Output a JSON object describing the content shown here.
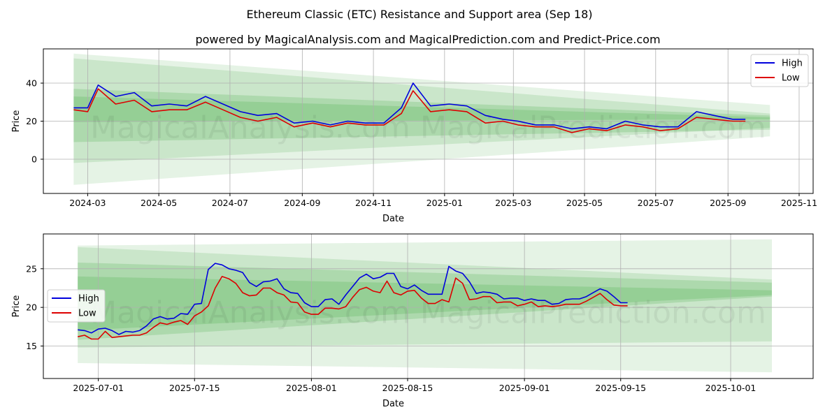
{
  "title": "Ethereum Classic (ETC) Resistance and Support area (Sep 18)",
  "subtitle": "powered by MagicalAnalysis.com and MagicalPrediction.com and Predict-Price.com",
  "watermark": "MagicalAnalysis.com     MagicalPrediction.com",
  "colors": {
    "high": "#0000dd",
    "low": "#dd0000",
    "band": "#2ca02c",
    "grid": "#b0b0b0"
  },
  "chart_data": [
    {
      "type": "line",
      "panel": "top",
      "xlabel": "Date",
      "ylabel": "Price",
      "x_ticks": [
        "2024-03",
        "2024-05",
        "2024-07",
        "2024-09",
        "2024-11",
        "2025-01",
        "2025-03",
        "2025-05",
        "2025-07",
        "2025-09",
        "2025-11"
      ],
      "y_ticks": [
        0,
        20,
        40
      ],
      "ylim": [
        -18,
        58
      ],
      "grid": true,
      "legend": "top-right",
      "series": [
        {
          "name": "High",
          "x": [
            "2024-02-18",
            "2024-03-01",
            "2024-03-10",
            "2024-03-25",
            "2024-04-10",
            "2024-04-25",
            "2024-05-10",
            "2024-05-25",
            "2024-06-10",
            "2024-06-25",
            "2024-07-10",
            "2024-07-25",
            "2024-08-10",
            "2024-08-25",
            "2024-09-10",
            "2024-09-25",
            "2024-10-10",
            "2024-10-25",
            "2024-11-10",
            "2024-11-25",
            "2024-12-05",
            "2024-12-20",
            "2025-01-05",
            "2025-01-20",
            "2025-02-05",
            "2025-02-20",
            "2025-03-05",
            "2025-03-20",
            "2025-04-05",
            "2025-04-20",
            "2025-05-05",
            "2025-05-20",
            "2025-06-05",
            "2025-06-20",
            "2025-07-05",
            "2025-07-20",
            "2025-08-05",
            "2025-08-20",
            "2025-09-05",
            "2025-09-16"
          ],
          "values": [
            27,
            27,
            39,
            33,
            35,
            28,
            29,
            28,
            33,
            29,
            25,
            23,
            24,
            19,
            20,
            18,
            20,
            19,
            19,
            27,
            40,
            28,
            29,
            28,
            23,
            21,
            20,
            18,
            18,
            16,
            17,
            16,
            20,
            18,
            17,
            17,
            25,
            23,
            21,
            21
          ]
        },
        {
          "name": "Low",
          "x": [
            "2024-02-18",
            "2024-03-01",
            "2024-03-10",
            "2024-03-25",
            "2024-04-10",
            "2024-04-25",
            "2024-05-10",
            "2024-05-25",
            "2024-06-10",
            "2024-06-25",
            "2024-07-10",
            "2024-07-25",
            "2024-08-10",
            "2024-08-25",
            "2024-09-10",
            "2024-09-25",
            "2024-10-10",
            "2024-10-25",
            "2024-11-10",
            "2024-11-25",
            "2024-12-05",
            "2024-12-20",
            "2025-01-05",
            "2025-01-20",
            "2025-02-05",
            "2025-02-20",
            "2025-03-05",
            "2025-03-20",
            "2025-04-05",
            "2025-04-20",
            "2025-05-05",
            "2025-05-20",
            "2025-06-05",
            "2025-06-20",
            "2025-07-05",
            "2025-07-20",
            "2025-08-05",
            "2025-08-20",
            "2025-09-05",
            "2025-09-16"
          ],
          "values": [
            26,
            25,
            37,
            29,
            31,
            25,
            26,
            26,
            30,
            26,
            22,
            20,
            22,
            17,
            19,
            17,
            19,
            18,
            18,
            24,
            36,
            25,
            26,
            25,
            19,
            20,
            18,
            17,
            17,
            14,
            16,
            15,
            18,
            17,
            15,
            16,
            22,
            21,
            20,
            20
          ]
        }
      ],
      "bands": [
        {
          "x": [
            "2024-02-18",
            "2025-10-07"
          ],
          "upper": [
            55.5,
            28.5
          ],
          "lower": [
            -13.5,
            12.0
          ],
          "opacity": 0.12
        },
        {
          "x": [
            "2024-02-18",
            "2025-10-07"
          ],
          "upper": [
            53.0,
            24.0
          ],
          "lower": [
            -2.0,
            16.5
          ],
          "opacity": 0.15
        },
        {
          "x": [
            "2024-02-18",
            "2025-10-07"
          ],
          "upper": [
            37.0,
            23.0
          ],
          "lower": [
            9.0,
            15.5
          ],
          "opacity": 0.18
        },
        {
          "x": [
            "2024-02-18",
            "2025-10-07"
          ],
          "upper": [
            33.0,
            22.0
          ],
          "lower": [
            19.5,
            21.0
          ],
          "opacity": 0.18
        }
      ]
    },
    {
      "type": "line",
      "panel": "bottom",
      "xlabel": "Date",
      "ylabel": "Price",
      "x_ticks": [
        "2025-07-01",
        "2025-07-15",
        "2025-08-01",
        "2025-08-15",
        "2025-09-01",
        "2025-09-15",
        "2025-10-01"
      ],
      "y_ticks": [
        15,
        20,
        25
      ],
      "ylim": [
        10.8,
        29.5
      ],
      "grid": true,
      "legend": "center-left",
      "series": [
        {
          "name": "High",
          "x": [
            "2025-06-28",
            "2025-06-29",
            "2025-06-30",
            "2025-07-01",
            "2025-07-02",
            "2025-07-03",
            "2025-07-04",
            "2025-07-05",
            "2025-07-06",
            "2025-07-07",
            "2025-07-08",
            "2025-07-09",
            "2025-07-10",
            "2025-07-11",
            "2025-07-12",
            "2025-07-13",
            "2025-07-14",
            "2025-07-15",
            "2025-07-16",
            "2025-07-17",
            "2025-07-18",
            "2025-07-19",
            "2025-07-20",
            "2025-07-21",
            "2025-07-22",
            "2025-07-23",
            "2025-07-24",
            "2025-07-25",
            "2025-07-26",
            "2025-07-27",
            "2025-07-28",
            "2025-07-29",
            "2025-07-30",
            "2025-07-31",
            "2025-08-01",
            "2025-08-02",
            "2025-08-03",
            "2025-08-04",
            "2025-08-05",
            "2025-08-06",
            "2025-08-07",
            "2025-08-08",
            "2025-08-09",
            "2025-08-10",
            "2025-08-11",
            "2025-08-12",
            "2025-08-13",
            "2025-08-14",
            "2025-08-15",
            "2025-08-16",
            "2025-08-17",
            "2025-08-18",
            "2025-08-19",
            "2025-08-20",
            "2025-08-21",
            "2025-08-22",
            "2025-08-23",
            "2025-08-24",
            "2025-08-25",
            "2025-08-26",
            "2025-08-27",
            "2025-08-28",
            "2025-08-29",
            "2025-08-30",
            "2025-08-31",
            "2025-09-01",
            "2025-09-02",
            "2025-09-03",
            "2025-09-04",
            "2025-09-05",
            "2025-09-06",
            "2025-09-07",
            "2025-09-08",
            "2025-09-09",
            "2025-09-10",
            "2025-09-11",
            "2025-09-12",
            "2025-09-13",
            "2025-09-14",
            "2025-09-15",
            "2025-09-16"
          ],
          "values": [
            17.1,
            17.0,
            16.7,
            17.2,
            17.3,
            17.0,
            16.5,
            16.9,
            16.8,
            17.0,
            17.6,
            18.5,
            18.8,
            18.5,
            18.6,
            19.2,
            19.1,
            20.4,
            20.5,
            24.9,
            25.7,
            25.5,
            25.0,
            24.8,
            24.5,
            23.2,
            22.7,
            23.3,
            23.4,
            23.7,
            22.4,
            21.9,
            21.8,
            20.6,
            20.1,
            20.1,
            21.0,
            21.1,
            20.4,
            21.6,
            22.7,
            23.8,
            24.3,
            23.7,
            23.9,
            24.4,
            24.4,
            22.7,
            22.4,
            22.9,
            22.2,
            21.7,
            21.7,
            21.7,
            25.3,
            24.7,
            24.4,
            23.3,
            21.8,
            22.0,
            21.9,
            21.7,
            21.1,
            21.2,
            21.2,
            20.9,
            21.1,
            20.9,
            20.9,
            20.4,
            20.5,
            21.0,
            21.1,
            21.1,
            21.4,
            21.9,
            22.4,
            22.1,
            21.4,
            20.6,
            20.6
          ]
        },
        {
          "name": "Low",
          "x": [
            "2025-06-28",
            "2025-06-29",
            "2025-06-30",
            "2025-07-01",
            "2025-07-02",
            "2025-07-03",
            "2025-07-04",
            "2025-07-05",
            "2025-07-06",
            "2025-07-07",
            "2025-07-08",
            "2025-07-09",
            "2025-07-10",
            "2025-07-11",
            "2025-07-12",
            "2025-07-13",
            "2025-07-14",
            "2025-07-15",
            "2025-07-16",
            "2025-07-17",
            "2025-07-18",
            "2025-07-19",
            "2025-07-20",
            "2025-07-21",
            "2025-07-22",
            "2025-07-23",
            "2025-07-24",
            "2025-07-25",
            "2025-07-26",
            "2025-07-27",
            "2025-07-28",
            "2025-07-29",
            "2025-07-30",
            "2025-07-31",
            "2025-08-01",
            "2025-08-02",
            "2025-08-03",
            "2025-08-04",
            "2025-08-05",
            "2025-08-06",
            "2025-08-07",
            "2025-08-08",
            "2025-08-09",
            "2025-08-10",
            "2025-08-11",
            "2025-08-12",
            "2025-08-13",
            "2025-08-14",
            "2025-08-15",
            "2025-08-16",
            "2025-08-17",
            "2025-08-18",
            "2025-08-19",
            "2025-08-20",
            "2025-08-21",
            "2025-08-22",
            "2025-08-23",
            "2025-08-24",
            "2025-08-25",
            "2025-08-26",
            "2025-08-27",
            "2025-08-28",
            "2025-08-29",
            "2025-08-30",
            "2025-08-31",
            "2025-09-01",
            "2025-09-02",
            "2025-09-03",
            "2025-09-04",
            "2025-09-05",
            "2025-09-06",
            "2025-09-07",
            "2025-09-08",
            "2025-09-09",
            "2025-09-10",
            "2025-09-11",
            "2025-09-12",
            "2025-09-13",
            "2025-09-14",
            "2025-09-15",
            "2025-09-16"
          ],
          "values": [
            16.2,
            16.4,
            15.9,
            15.9,
            16.9,
            16.1,
            16.2,
            16.3,
            16.4,
            16.4,
            16.7,
            17.4,
            18.0,
            17.8,
            18.1,
            18.3,
            17.8,
            18.9,
            19.4,
            20.2,
            22.5,
            24.0,
            23.7,
            23.1,
            21.9,
            21.5,
            21.6,
            22.5,
            22.5,
            21.9,
            21.6,
            20.7,
            20.6,
            19.4,
            19.1,
            19.1,
            19.9,
            19.9,
            19.8,
            20.1,
            21.3,
            22.3,
            22.6,
            22.1,
            21.9,
            23.4,
            21.9,
            21.6,
            22.1,
            22.2,
            21.2,
            20.5,
            20.5,
            21.0,
            20.7,
            23.8,
            23.1,
            21.0,
            21.1,
            21.4,
            21.4,
            20.6,
            20.7,
            20.7,
            20.2,
            20.4,
            20.7,
            20.1,
            20.2,
            20.1,
            20.2,
            20.4,
            20.4,
            20.4,
            20.8,
            21.3,
            21.8,
            21.0,
            20.3,
            20.2,
            20.2
          ]
        }
      ],
      "bands": [
        {
          "x": [
            "2025-06-28",
            "2025-10-07"
          ],
          "upper": [
            28.0,
            28.8
          ],
          "lower": [
            12.8,
            11.6
          ],
          "opacity": 0.12
        },
        {
          "x": [
            "2025-06-28",
            "2025-10-07"
          ],
          "upper": [
            27.8,
            23.6
          ],
          "lower": [
            14.8,
            15.6
          ],
          "opacity": 0.15
        },
        {
          "x": [
            "2025-06-28",
            "2025-10-07"
          ],
          "upper": [
            25.8,
            23.2
          ],
          "lower": [
            15.8,
            21.4
          ],
          "opacity": 0.18
        },
        {
          "x": [
            "2025-06-28",
            "2025-10-07"
          ],
          "upper": [
            24.0,
            22.2
          ],
          "lower": [
            17.0,
            21.6
          ],
          "opacity": 0.18
        }
      ]
    }
  ]
}
